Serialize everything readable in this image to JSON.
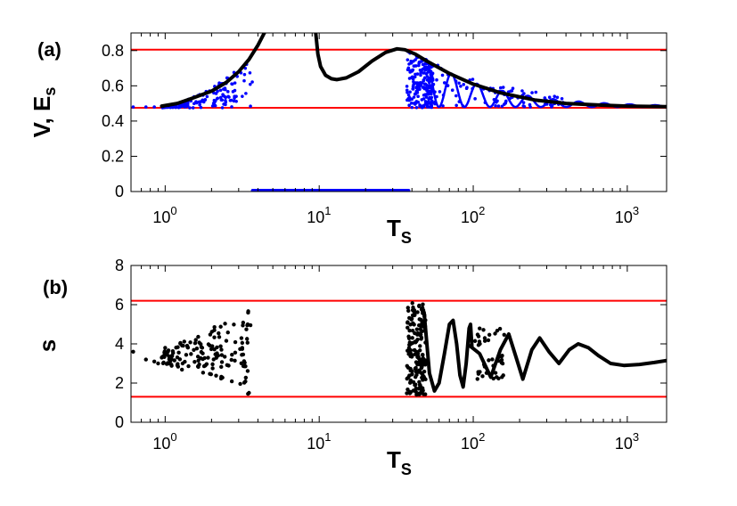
{
  "colors": {
    "black_series": "#000000",
    "blue_series": "#0000ff",
    "threshold": "#ff0000",
    "axes": "#000000"
  },
  "chart_data": [
    {
      "panel_label": "(a)",
      "type": "scatter",
      "x_scale": "log",
      "xlim": [
        0.6,
        1800
      ],
      "ylim": [
        0,
        0.9
      ],
      "xticks": [
        1,
        10,
        100,
        1000
      ],
      "xtick_labels": [
        {
          "base": "10",
          "exp": "0"
        },
        {
          "base": "10",
          "exp": "1"
        },
        {
          "base": "10",
          "exp": "2"
        },
        {
          "base": "10",
          "exp": "3"
        }
      ],
      "yticks": [
        "0",
        "0.2",
        "0.4",
        "0.6",
        "0.8"
      ],
      "ylabel": {
        "main": "V,  E",
        "sub": "s"
      },
      "xlabel": {
        "main": "T",
        "sub": "S"
      },
      "hlines": [
        0.805,
        0.475
      ],
      "series": [
        {
          "color": "black",
          "kind": "curve",
          "points": [
            [
              0.95,
              0.485
            ],
            [
              1.2,
              0.5
            ],
            [
              1.5,
              0.53
            ],
            [
              2,
              0.57
            ],
            [
              2.5,
              0.62
            ],
            [
              3,
              0.68
            ],
            [
              3.5,
              0.75
            ],
            [
              4,
              0.83
            ],
            [
              4.4,
              0.9
            ]
          ]
        },
        {
          "color": "black",
          "kind": "curve",
          "points": [
            [
              9.5,
              0.9
            ],
            [
              9.8,
              0.78
            ],
            [
              10.2,
              0.71
            ],
            [
              11,
              0.66
            ],
            [
              12,
              0.64
            ],
            [
              13,
              0.635
            ],
            [
              15,
              0.645
            ],
            [
              18,
              0.68
            ],
            [
              22,
              0.74
            ],
            [
              27,
              0.79
            ],
            [
              32,
              0.81
            ],
            [
              36,
              0.805
            ],
            [
              42,
              0.78
            ],
            [
              50,
              0.74
            ],
            [
              70,
              0.67
            ],
            [
              100,
              0.61
            ],
            [
              150,
              0.56
            ],
            [
              250,
              0.52
            ],
            [
              400,
              0.5
            ],
            [
              700,
              0.49
            ],
            [
              1000,
              0.485
            ],
            [
              1800,
              0.482
            ]
          ]
        },
        {
          "color": "blue",
          "kind": "zero-line",
          "x_range": [
            3.7,
            38
          ]
        }
      ]
    },
    {
      "panel_label": "(b)",
      "type": "scatter",
      "x_scale": "log",
      "xlim": [
        0.6,
        1800
      ],
      "ylim": [
        0,
        8
      ],
      "xticks": [
        1,
        10,
        100,
        1000
      ],
      "xtick_labels": [
        {
          "base": "10",
          "exp": "0"
        },
        {
          "base": "10",
          "exp": "1"
        },
        {
          "base": "10",
          "exp": "2"
        },
        {
          "base": "10",
          "exp": "3"
        }
      ],
      "yticks": [
        "0",
        "2",
        "4",
        "6",
        "8"
      ],
      "ylabel": {
        "main": "s",
        "sub": ""
      },
      "xlabel": {
        "main": "T",
        "sub": "S"
      },
      "hlines": [
        6.2,
        1.3
      ],
      "series": [
        {
          "color": "black",
          "kind": "curve",
          "points": [
            [
              95,
              3.9
            ],
            [
              110,
              3.5
            ],
            [
              130,
              2.3
            ],
            [
              150,
              3.7
            ],
            [
              170,
              4.5
            ],
            [
              190,
              3.3
            ],
            [
              210,
              2.2
            ],
            [
              240,
              3.7
            ],
            [
              270,
              4.3
            ],
            [
              310,
              3.6
            ],
            [
              360,
              3.0
            ],
            [
              420,
              3.7
            ],
            [
              480,
              4.0
            ],
            [
              560,
              3.8
            ],
            [
              650,
              3.4
            ],
            [
              780,
              3.0
            ],
            [
              950,
              2.9
            ],
            [
              1200,
              2.95
            ],
            [
              1500,
              3.05
            ],
            [
              1800,
              3.15
            ]
          ]
        },
        {
          "color": "black",
          "kind": "curve",
          "points": [
            [
              48,
              5.6
            ],
            [
              52,
              2.5
            ],
            [
              56,
              1.6
            ],
            [
              60,
              2.0
            ],
            [
              65,
              3.5
            ],
            [
              70,
              5.0
            ],
            [
              74,
              5.2
            ],
            [
              78,
              4.0
            ],
            [
              82,
              2.4
            ],
            [
              86,
              1.8
            ],
            [
              90,
              3.0
            ],
            [
              94,
              4.8
            ],
            [
              96,
              5.0
            ],
            [
              98,
              3.9
            ]
          ]
        }
      ]
    }
  ]
}
